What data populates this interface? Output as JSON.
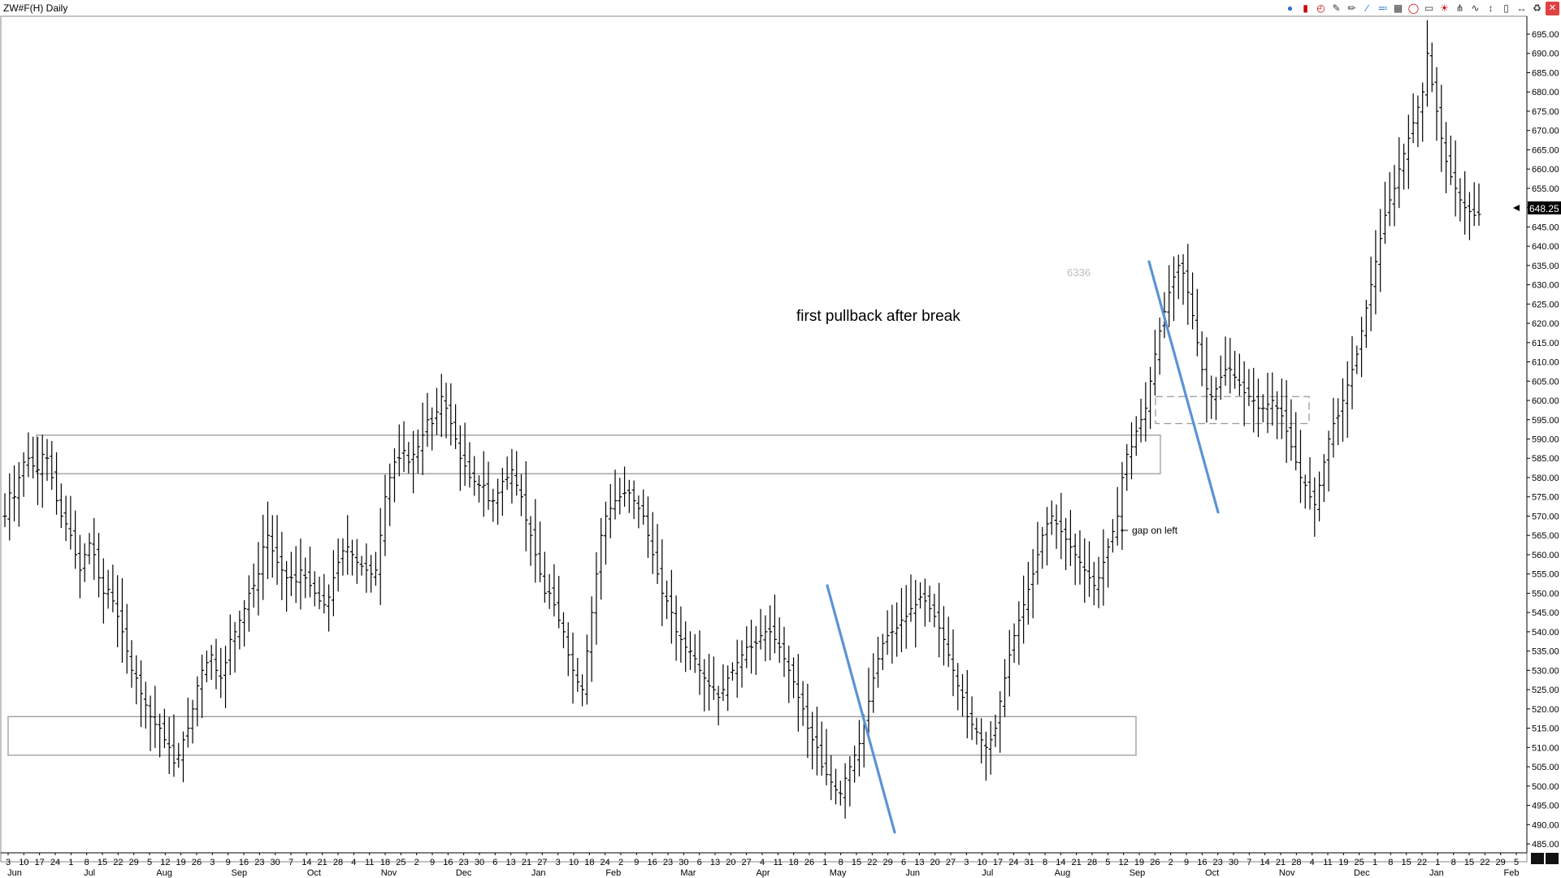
{
  "window": {
    "title": "ZW#F(H) Daily"
  },
  "toolbar": {
    "icons": [
      "objects-icon",
      "candle-icon",
      "clock-icon",
      "edit-icon",
      "pencil-icon",
      "trendline-icon",
      "channel-icon",
      "grid-icon",
      "cycle-icon",
      "rectangle-icon",
      "fib-icon",
      "fork-icon",
      "wave-icon",
      "arrow-icon",
      "text-icon",
      "separator-icon",
      "trash-icon",
      "close-icon"
    ]
  },
  "chart_data": {
    "type": "ohlc",
    "symbol": "ZW#F(H)",
    "timeframe": "Daily",
    "ylim": [
      485,
      695
    ],
    "y_ticks": [
      485,
      490,
      495,
      500,
      505,
      510,
      515,
      520,
      525,
      530,
      535,
      540,
      545,
      550,
      555,
      560,
      565,
      570,
      575,
      580,
      585,
      590,
      595,
      600,
      605,
      610,
      615,
      620,
      625,
      630,
      635,
      640,
      645,
      650,
      655,
      660,
      665,
      670,
      675,
      680,
      685,
      690,
      695
    ],
    "last_price": "648.25",
    "last_value": 648.25,
    "x_day_labels": [
      "3",
      "10",
      "17",
      "24",
      "1",
      "8",
      "15",
      "22",
      "29",
      "5",
      "12",
      "19",
      "26",
      "3",
      "9",
      "16",
      "23",
      "30",
      "7",
      "14",
      "21",
      "28",
      "4",
      "11",
      "18",
      "25",
      "2",
      "9",
      "16",
      "23",
      "30",
      "6",
      "13",
      "21",
      "27",
      "3",
      "10",
      "18",
      "24",
      "2",
      "9",
      "16",
      "23",
      "30",
      "6",
      "13",
      "20",
      "27",
      "4",
      "11",
      "18",
      "26",
      "1",
      "8",
      "15",
      "22",
      "29",
      "6",
      "13",
      "20",
      "27",
      "3",
      "10",
      "17",
      "24",
      "31",
      "8",
      "14",
      "21",
      "28",
      "5",
      "12",
      "19",
      "26",
      "2",
      "9",
      "16",
      "23",
      "30",
      "7",
      "14",
      "21",
      "28",
      "4",
      "11",
      "19",
      "25",
      "1",
      "8",
      "15",
      "22",
      "1",
      "8",
      "15",
      "22",
      "29",
      "5"
    ],
    "x_month_labels": [
      "Jun",
      "Jul",
      "Aug",
      "Sep",
      "Oct",
      "Nov",
      "Dec",
      "Jan",
      "Feb",
      "Mar",
      "Apr",
      "May",
      "Jun",
      "Jul",
      "Aug",
      "Sep",
      "Oct",
      "Nov",
      "Dec",
      "Jan",
      "Feb"
    ],
    "annotations": {
      "main_note": "first pullback after break",
      "gap_note": "gap on left",
      "faint_label": "6336"
    },
    "zones": [
      {
        "name": "upper-resistance-zone",
        "y1": 581,
        "y2": 591
      },
      {
        "name": "lower-support-zone",
        "y1": 508,
        "y2": 518
      },
      {
        "name": "gap-zone",
        "y1": 594,
        "y2": 601
      }
    ],
    "trend_lines": [
      {
        "name": "trendline-jun",
        "from": 552,
        "to": 488
      },
      {
        "name": "trendline-oct-nov",
        "from": 636,
        "to": 571
      }
    ],
    "closes": [
      570,
      576,
      575,
      580,
      584,
      585,
      583,
      582,
      586,
      585,
      580,
      574,
      570,
      568,
      565,
      560,
      556,
      560,
      563,
      560,
      554,
      550,
      551,
      548,
      544,
      540,
      535,
      530,
      528,
      524,
      521,
      518,
      516,
      515,
      512,
      510,
      506,
      508,
      512,
      515,
      520,
      526,
      530,
      532,
      534,
      530,
      528,
      532,
      538,
      540,
      543,
      546,
      550,
      552,
      555,
      562,
      565,
      561,
      558,
      556,
      554,
      554,
      553,
      556,
      554,
      552,
      550,
      548,
      547,
      549,
      554,
      558,
      561,
      562,
      560,
      558,
      557,
      556,
      555,
      556,
      565,
      575,
      580,
      584,
      585,
      587,
      584,
      586,
      588,
      591,
      595,
      594,
      597,
      601,
      598,
      594,
      590,
      585,
      583,
      580,
      579,
      578,
      578,
      574,
      574,
      576,
      579,
      580,
      582,
      578,
      575,
      569,
      565,
      560,
      555,
      550,
      550,
      547,
      543,
      540,
      534,
      530,
      527,
      525,
      535,
      545,
      555,
      565,
      570,
      572,
      574,
      575,
      576,
      576,
      574,
      572,
      570,
      565,
      560,
      555,
      550,
      548,
      545,
      540,
      538,
      536,
      535,
      533,
      530,
      528,
      526,
      525,
      523,
      525,
      528,
      530,
      532,
      534,
      536,
      536,
      537,
      539,
      540,
      540,
      538,
      536,
      533,
      530,
      527,
      523,
      520,
      515,
      512,
      510,
      505,
      503,
      501,
      499,
      498,
      502,
      505,
      508,
      511,
      516,
      522,
      528,
      533,
      537,
      539,
      540,
      541,
      543,
      544,
      546,
      547,
      549,
      548,
      546,
      544,
      541,
      538,
      534,
      530,
      526,
      523,
      518,
      516,
      514,
      512,
      510,
      512,
      515,
      522,
      528,
      534,
      539,
      543,
      547,
      551,
      555,
      560,
      565,
      568,
      570,
      568,
      566,
      564,
      562,
      560,
      558,
      556,
      554,
      552,
      554,
      558,
      562,
      566,
      570,
      580,
      586,
      588,
      592,
      595,
      598,
      605,
      612,
      618,
      623,
      628,
      632,
      635,
      633,
      628,
      622,
      615,
      608,
      603,
      601,
      603,
      606,
      608,
      608,
      606,
      604,
      602,
      601,
      600,
      598,
      598,
      599,
      600,
      598,
      596,
      592,
      588,
      584,
      580,
      578,
      575,
      573,
      578,
      584,
      590,
      594,
      596,
      600,
      604,
      608,
      612,
      618,
      624,
      630,
      636,
      642,
      648,
      652,
      655,
      660,
      664,
      668,
      672,
      676,
      680,
      690,
      682,
      675,
      668,
      662,
      658,
      655,
      652,
      650,
      649,
      648,
      648.25
    ]
  }
}
